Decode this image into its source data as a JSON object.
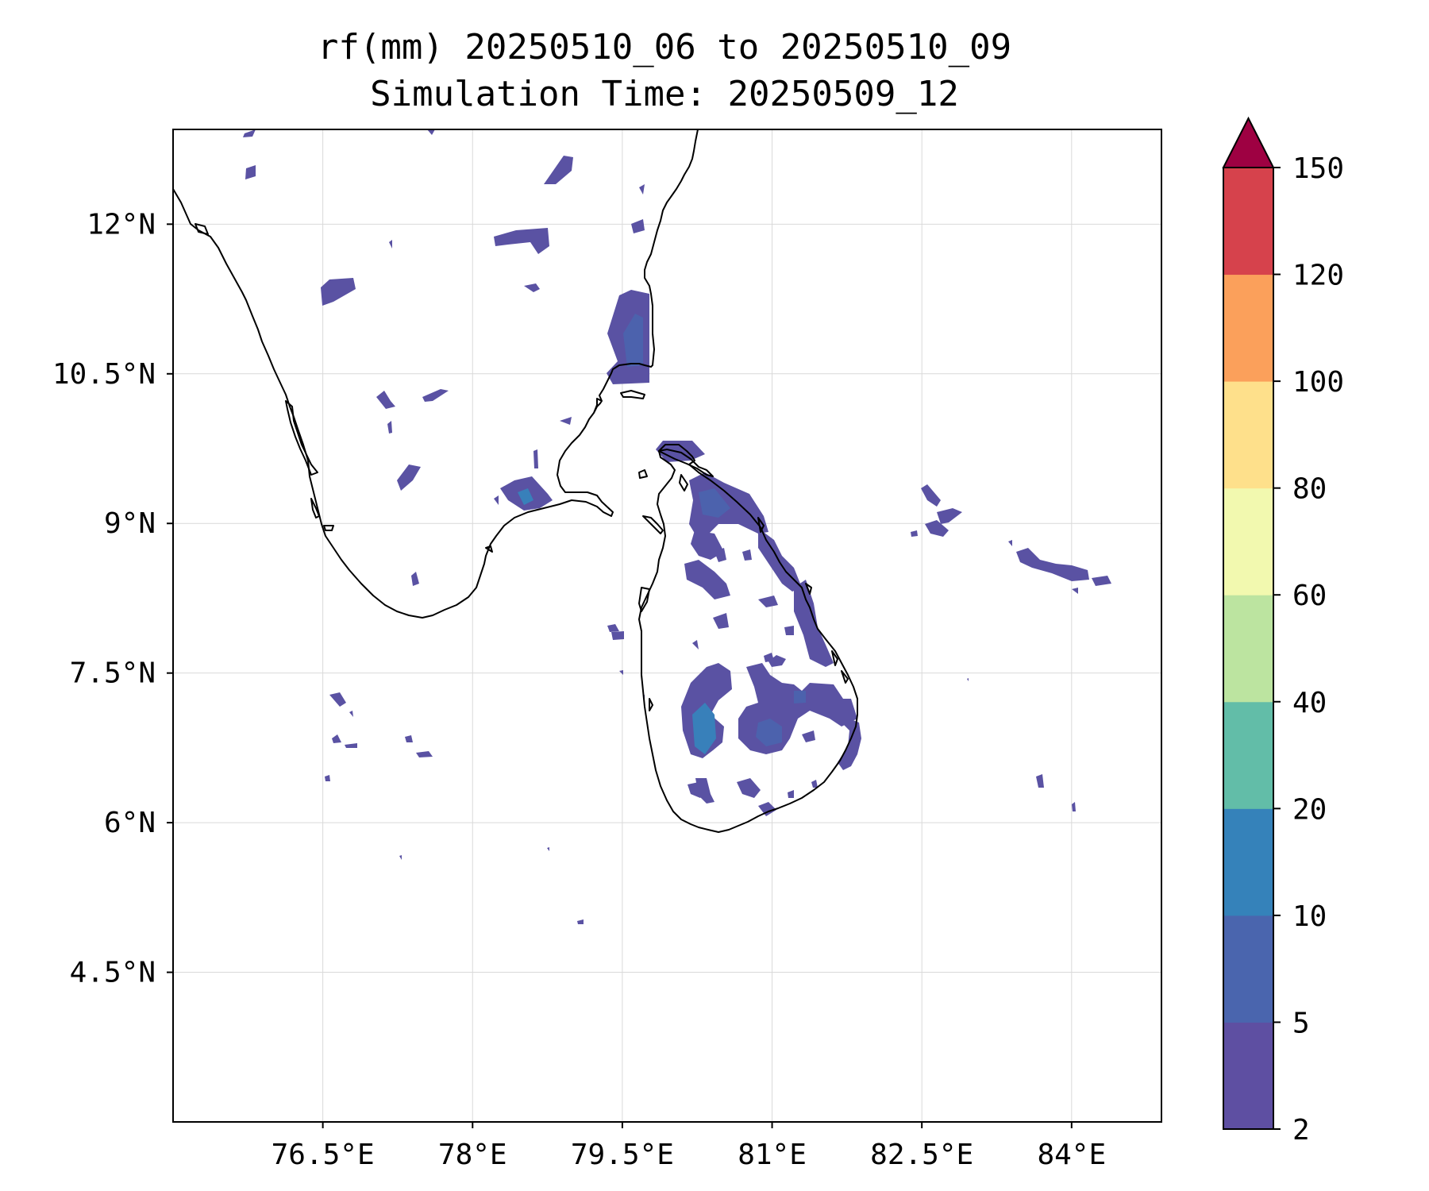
{
  "title": {
    "line1": "rf(mm) 20250510_06 to 20250510_09",
    "line2": "Simulation Time: 20250509_12"
  },
  "map": {
    "lon_range": [
      75.0,
      84.9
    ],
    "lat_range": [
      3.0,
      12.95
    ],
    "x_ticks": [
      {
        "value": 76.5,
        "label": "76.5°E"
      },
      {
        "value": 78.0,
        "label": "78°E"
      },
      {
        "value": 79.5,
        "label": "79.5°E"
      },
      {
        "value": 81.0,
        "label": "81°E"
      },
      {
        "value": 82.5,
        "label": "82.5°E"
      },
      {
        "value": 84.0,
        "label": "84°E"
      }
    ],
    "y_ticks": [
      {
        "value": 12.0,
        "label": "12°N"
      },
      {
        "value": 10.5,
        "label": "10.5°N"
      },
      {
        "value": 9.0,
        "label": "9°N"
      },
      {
        "value": 7.5,
        "label": "7.5°N"
      },
      {
        "value": 6.0,
        "label": "6°N"
      },
      {
        "value": 4.5,
        "label": "4.5°N"
      }
    ],
    "grid": true
  },
  "colorbar": {
    "extend": "max",
    "extend_color": "#9e0142",
    "levels": [
      {
        "label": "2",
        "value": 2
      },
      {
        "label": "5",
        "value": 5
      },
      {
        "label": "10",
        "value": 10
      },
      {
        "label": "20",
        "value": 20
      },
      {
        "label": "40",
        "value": 40
      },
      {
        "label": "60",
        "value": 60
      },
      {
        "label": "80",
        "value": 80
      },
      {
        "label": "100",
        "value": 100
      },
      {
        "label": "120",
        "value": 120
      },
      {
        "label": "150",
        "value": 150
      }
    ],
    "colors": [
      "#5e4fa2",
      "#4a65ae",
      "#3582ba",
      "#62bda8",
      "#bce4a0",
      "#f2f9af",
      "#fee08b",
      "#fba05b",
      "#d6424c"
    ]
  }
}
